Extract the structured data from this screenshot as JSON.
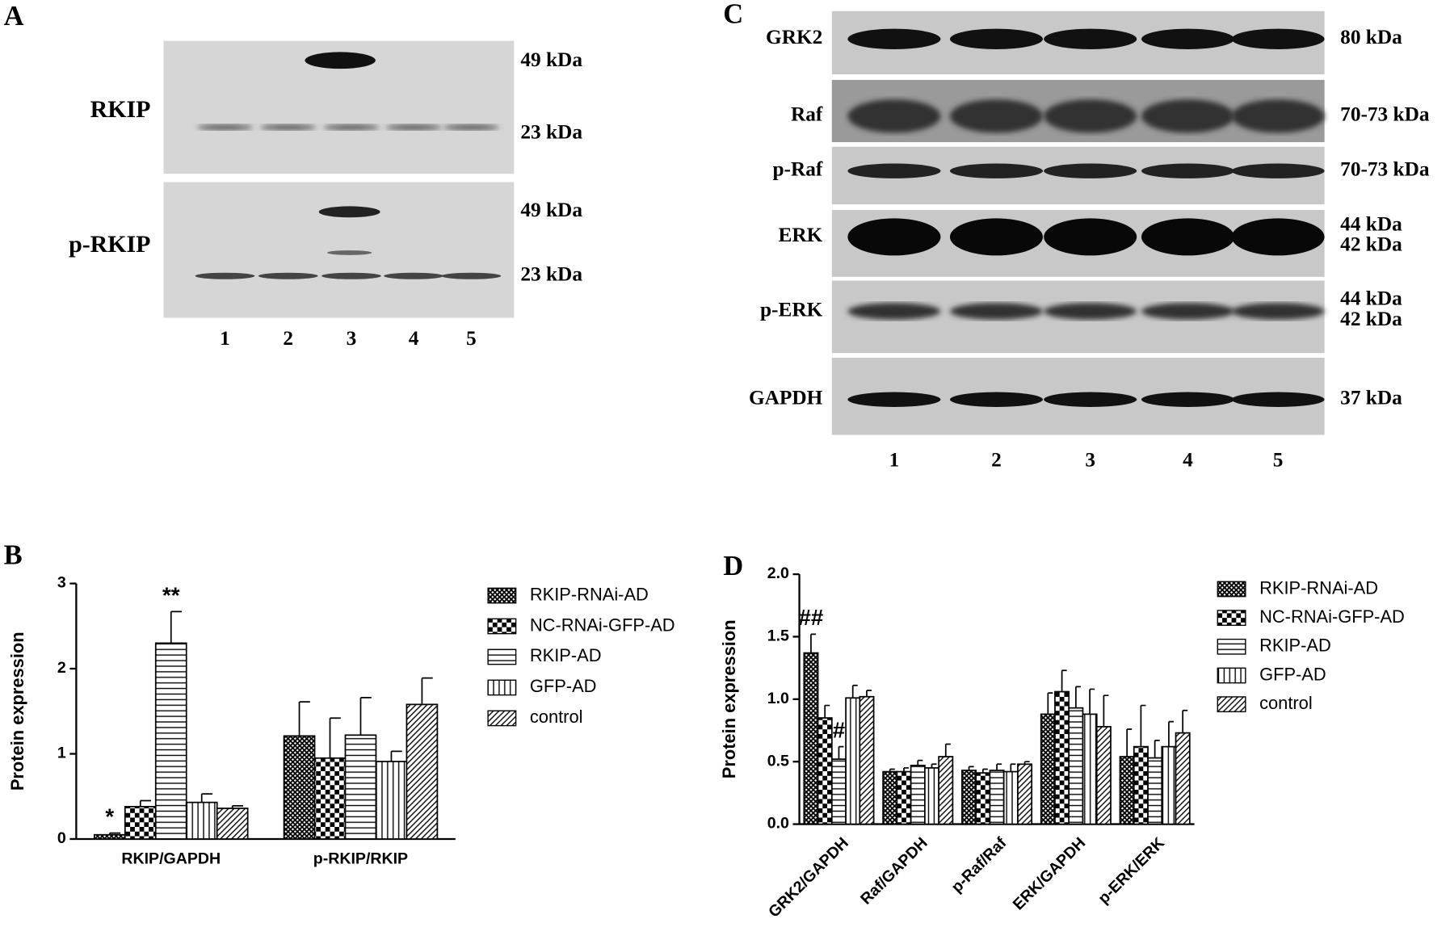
{
  "blot_a": {
    "label": "A",
    "lanes": [
      "1",
      "2",
      "3",
      "4",
      "5"
    ],
    "rows": [
      {
        "label": "RKIP",
        "markers": [
          "49 kDa",
          "23 kDa"
        ]
      },
      {
        "label": "p-RKIP",
        "markers": [
          "49 kDa",
          "23 kDa"
        ]
      }
    ]
  },
  "blot_c": {
    "label": "C",
    "lanes": [
      "1",
      "2",
      "3",
      "4",
      "5"
    ],
    "rows": [
      {
        "label": "GRK2",
        "markers": [
          "80 kDa"
        ]
      },
      {
        "label": "Raf",
        "markers": [
          "70-73 kDa"
        ]
      },
      {
        "label": "p-Raf",
        "markers": [
          "70-73 kDa"
        ]
      },
      {
        "label": "ERK",
        "markers": [
          "44 kDa",
          "42 kDa"
        ]
      },
      {
        "label": "p-ERK",
        "markers": [
          "44 kDa",
          "42 kDa"
        ]
      },
      {
        "label": "GAPDH",
        "markers": [
          "37 kDa"
        ]
      }
    ]
  },
  "chart_data": [
    {
      "type": "bar",
      "label": "B",
      "ylabel": "Protein expression",
      "categories": [
        "RKIP/GAPDH",
        "p-RKIP/RKIP"
      ],
      "ylim": [
        0,
        3
      ],
      "yticks": [
        0,
        1,
        2,
        3
      ],
      "legend": "right",
      "series": [
        {
          "name": "RKIP-RNAi-AD",
          "color": "#000000",
          "pattern": "crosshatch",
          "values": [
            0.05,
            1.21
          ],
          "errors": [
            0.02,
            0.4
          ]
        },
        {
          "name": "NC-RNAi-GFP-AD",
          "color": "#000000",
          "pattern": "checker",
          "values": [
            0.38,
            0.95
          ],
          "errors": [
            0.07,
            0.47
          ]
        },
        {
          "name": "RKIP-AD",
          "color": "#000000",
          "pattern": "hlines",
          "values": [
            2.3,
            1.22
          ],
          "errors": [
            0.37,
            0.44
          ]
        },
        {
          "name": "GFP-AD",
          "color": "#000000",
          "pattern": "vlines",
          "values": [
            0.43,
            0.91
          ],
          "errors": [
            0.1,
            0.12
          ]
        },
        {
          "name": "control",
          "color": "#000000",
          "pattern": "diagonal",
          "values": [
            0.36,
            1.58
          ],
          "errors": [
            0.03,
            0.31
          ]
        }
      ],
      "annotations": [
        {
          "text": "*",
          "category": "RKIP/GAPDH",
          "series": "RKIP-RNAi-AD"
        },
        {
          "text": "**",
          "category": "RKIP/GAPDH",
          "series": "RKIP-AD"
        }
      ]
    },
    {
      "type": "bar",
      "label": "D",
      "ylabel": "Protein expression",
      "categories": [
        "GRK2/GAPDH",
        "Raf/GAPDH",
        "p-Raf/Raf",
        "ERK/GAPDH",
        "p-ERK/ERK"
      ],
      "ylim": [
        0,
        2
      ],
      "yticks": [
        {
          "value": 0,
          "label": "0.0"
        },
        0.5,
        {
          "value": 1,
          "label": "1.0"
        },
        1.5,
        {
          "value": 2,
          "label": "2.0"
        }
      ],
      "legend": "right",
      "rotate_labels": true,
      "series": [
        {
          "name": "RKIP-RNAi-AD",
          "color": "#000000",
          "pattern": "crosshatch",
          "values": [
            1.37,
            0.42,
            0.43,
            0.88,
            0.54
          ],
          "errors": [
            0.15,
            0.02,
            0.03,
            0.17,
            0.22
          ]
        },
        {
          "name": "NC-RNAi-GFP-AD",
          "color": "#000000",
          "pattern": "checker",
          "values": [
            0.85,
            0.42,
            0.41,
            1.06,
            0.62
          ],
          "errors": [
            0.1,
            0.03,
            0.03,
            0.17,
            0.33
          ]
        },
        {
          "name": "RKIP-AD",
          "color": "#000000",
          "pattern": "hlines",
          "values": [
            0.52,
            0.47,
            0.43,
            0.93,
            0.53
          ],
          "errors": [
            0.1,
            0.04,
            0.05,
            0.17,
            0.14
          ]
        },
        {
          "name": "GFP-AD",
          "color": "#000000",
          "pattern": "vlines",
          "values": [
            1.01,
            0.45,
            0.42,
            0.88,
            0.62
          ],
          "errors": [
            0.1,
            0.03,
            0.06,
            0.2,
            0.2
          ]
        },
        {
          "name": "control",
          "color": "#000000",
          "pattern": "diagonal",
          "values": [
            1.02,
            0.54,
            0.48,
            0.78,
            0.73
          ],
          "errors": [
            0.05,
            0.1,
            0.02,
            0.25,
            0.18
          ]
        }
      ],
      "annotations": [
        {
          "text": "##",
          "category": "GRK2/GAPDH",
          "series": "RKIP-RNAi-AD"
        },
        {
          "text": "#",
          "category": "GRK2/GAPDH",
          "series": "RKIP-AD"
        }
      ]
    }
  ]
}
